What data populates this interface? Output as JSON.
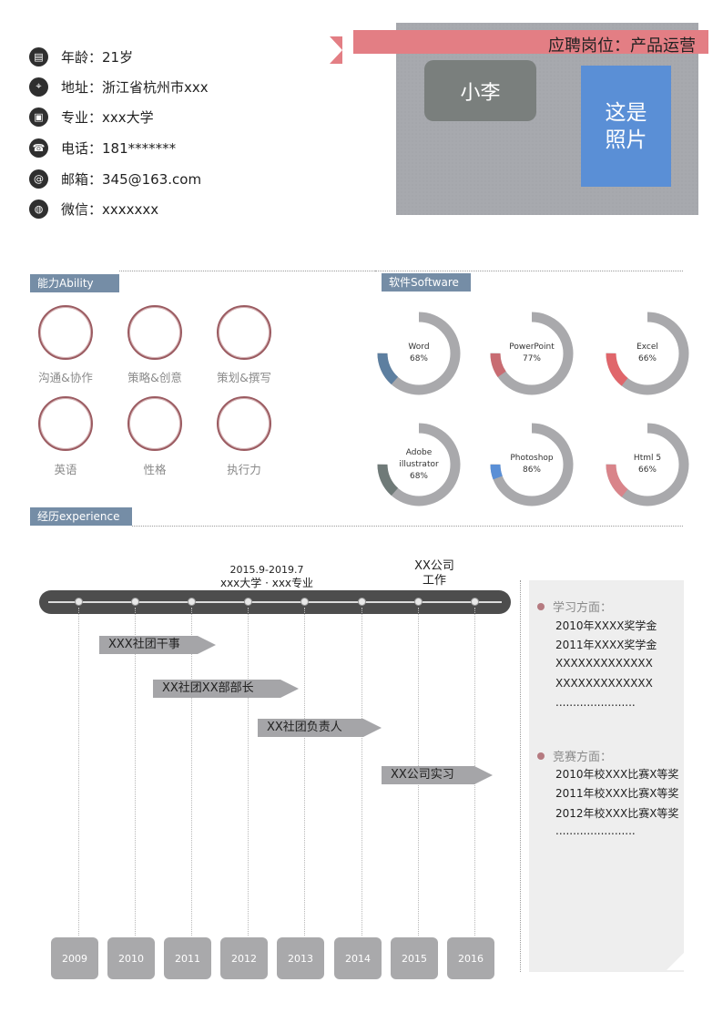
{
  "contact": [
    {
      "icon": "document-icon",
      "glyph": "▤",
      "label": "年龄：21岁"
    },
    {
      "icon": "location-pin-icon",
      "glyph": "⌖",
      "label": "地址：浙江省杭州市xxx"
    },
    {
      "icon": "id-card-icon",
      "glyph": "▣",
      "label": "专业：xxx大学"
    },
    {
      "icon": "phone-icon",
      "glyph": "☎",
      "label": "电话：181*******"
    },
    {
      "icon": "at-icon",
      "glyph": "@",
      "label": "邮箱：345@163.com"
    },
    {
      "icon": "wechat-icon",
      "glyph": "◍",
      "label": "微信：xxxxxxx"
    }
  ],
  "header": {
    "position": "应聘岗位：产品运营",
    "name": "小李",
    "photo_placeholder": "这是照片"
  },
  "sections": {
    "ability": "能力Ability",
    "software": "软件Software",
    "experience": "经历experience"
  },
  "abilities": [
    "沟通&协作",
    "策略&创意",
    "策划&撰写",
    "英语",
    "性格",
    "执行力"
  ],
  "software": [
    {
      "name": "Word",
      "percent": 68,
      "color": "#5d7fa0"
    },
    {
      "name": "PowerPoint",
      "percent": 77,
      "color": "#c86c72"
    },
    {
      "name": "Excel",
      "percent": 66,
      "color": "#e0666b"
    },
    {
      "name": "Adobe illustrator",
      "percent": 68,
      "color": "#6f7a78"
    },
    {
      "name": "Photoshop",
      "percent": 86,
      "color": "#5a8fd6"
    },
    {
      "name": "Html 5",
      "percent": 66,
      "color": "#d9848a"
    }
  ],
  "timeline": {
    "top_labels": [
      {
        "date": "2015.9-2019.7",
        "text": "xxx大学 · xxx专业"
      },
      {
        "date": "XX公司",
        "text": "工作"
      }
    ],
    "years": [
      "2009",
      "2010",
      "2011",
      "2012",
      "2013",
      "2014",
      "2015",
      "2016"
    ],
    "events": [
      "XXX社团干事",
      "XX社团XX部部长",
      "XX社团负责人",
      "XX公司实习"
    ]
  },
  "awards": {
    "study_title": "学习方面：",
    "study_items": [
      "2010年XXXX奖学金",
      "2011年XXXX奖学金",
      "XXXXXXXXXXXXX",
      "XXXXXXXXXXXXX",
      "......................."
    ],
    "contest_title": "竞赛方面：",
    "contest_items": [
      "2010年校XXX比赛X等奖",
      "2011年校XXX比赛X等奖",
      "2012年校XXX比赛X等奖",
      "......................."
    ]
  }
}
